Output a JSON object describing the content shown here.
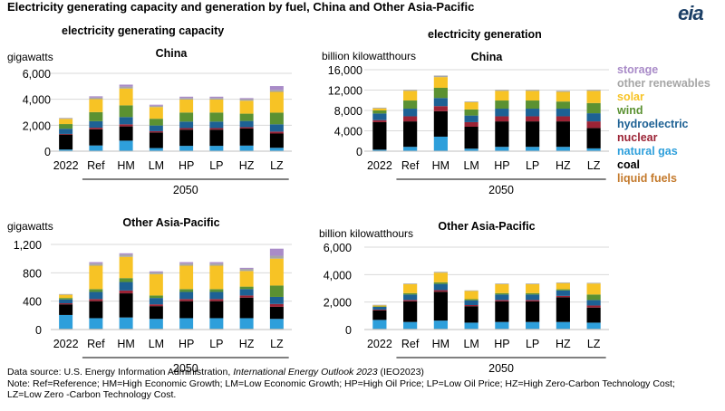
{
  "title": "Electricity generating capacity and generation by  fuel, China and Other Asia-Pacific",
  "logo": "eia",
  "section_titles": {
    "capacity": "electricity generating capacity",
    "generation": "electricity generation"
  },
  "legend": [
    {
      "label": "storage",
      "color": "#a98bc8"
    },
    {
      "label": "other renewables",
      "color": "#a6a6a6"
    },
    {
      "label": "solar",
      "color": "#f7c325"
    },
    {
      "label": "wind",
      "color": "#5b9132"
    },
    {
      "label": "hydroelectric",
      "color": "#1d6194"
    },
    {
      "label": "nuclear",
      "color": "#9b2335"
    },
    {
      "label": "natural gas",
      "color": "#2e9fdb"
    },
    {
      "label": "coal",
      "color": "#000000"
    },
    {
      "label": "liquid fuels",
      "color": "#c47a2c"
    }
  ],
  "footer": {
    "source_prefix": "Data source: U.S. Energy Information Administration, ",
    "source_title": "International Energy Outlook 2023",
    "source_suffix": " (IEO2023)",
    "note": "Note: Ref=Reference; HM=High Economic Growth; LM=Low Economic Growth; HP=High Oil Price; LP=Low Oil Price; HZ=High Zero-Carbon Technology Cost; LZ=Low Zero -Carbon Technology Cost."
  },
  "chart_data": [
    {
      "type": "bar",
      "stacked": true,
      "title": "China",
      "ylabel": "gigawatts",
      "ylim": [
        0,
        6000
      ],
      "yticks": [
        "0",
        "2,000",
        "4,000",
        "6,000"
      ],
      "categories": [
        "2022",
        "Ref",
        "HM",
        "LM",
        "HP",
        "LP",
        "HZ",
        "LZ"
      ],
      "group_label": "2050",
      "series": [
        {
          "name": "liquid fuels",
          "values": [
            10,
            10,
            10,
            10,
            10,
            10,
            10,
            10
          ]
        },
        {
          "name": "natural gas",
          "values": [
            120,
            430,
            800,
            230,
            400,
            400,
            420,
            250
          ]
        },
        {
          "name": "coal",
          "values": [
            1150,
            1250,
            1100,
            1200,
            1250,
            1250,
            1320,
            1100
          ]
        },
        {
          "name": "nuclear",
          "values": [
            50,
            120,
            160,
            100,
            120,
            120,
            100,
            150
          ]
        },
        {
          "name": "hydroelectric",
          "values": [
            400,
            500,
            560,
            440,
            500,
            500,
            480,
            560
          ]
        },
        {
          "name": "wind",
          "values": [
            360,
            700,
            900,
            520,
            700,
            700,
            560,
            900
          ]
        },
        {
          "name": "solar",
          "values": [
            400,
            1000,
            1300,
            900,
            1000,
            1000,
            1000,
            1600
          ]
        },
        {
          "name": "other renewables",
          "values": [
            60,
            120,
            150,
            100,
            120,
            120,
            120,
            150
          ]
        },
        {
          "name": "storage",
          "values": [
            10,
            100,
            150,
            80,
            100,
            100,
            80,
            300
          ]
        }
      ]
    },
    {
      "type": "bar",
      "stacked": true,
      "title": "China",
      "ylabel": "billion kilowatthours",
      "ylim": [
        0,
        16000
      ],
      "yticks": [
        "0",
        "4,000",
        "8,000",
        "12,000",
        "16,000"
      ],
      "categories": [
        "2022",
        "Ref",
        "HM",
        "LM",
        "HP",
        "LP",
        "HZ",
        "LZ"
      ],
      "group_label": "2050",
      "series": [
        {
          "name": "liquid fuels",
          "values": [
            50,
            50,
            50,
            50,
            50,
            50,
            50,
            50
          ]
        },
        {
          "name": "natural gas",
          "values": [
            250,
            800,
            2800,
            450,
            800,
            800,
            800,
            500
          ]
        },
        {
          "name": "coal",
          "values": [
            5400,
            5000,
            5000,
            4300,
            5000,
            5000,
            5000,
            4000
          ]
        },
        {
          "name": "nuclear",
          "values": [
            400,
            1000,
            1000,
            900,
            1000,
            1000,
            1000,
            1300
          ]
        },
        {
          "name": "hydroelectric",
          "values": [
            1300,
            1500,
            1600,
            1300,
            1500,
            1500,
            1500,
            1600
          ]
        },
        {
          "name": "wind",
          "values": [
            600,
            1600,
            2000,
            1200,
            1600,
            1600,
            1400,
            2000
          ]
        },
        {
          "name": "solar",
          "values": [
            400,
            1900,
            2100,
            1400,
            1900,
            1900,
            1900,
            2400
          ]
        },
        {
          "name": "other renewables",
          "values": [
            150,
            200,
            300,
            150,
            200,
            200,
            200,
            200
          ]
        }
      ]
    },
    {
      "type": "bar",
      "stacked": true,
      "title": "Other Asia-Pacific",
      "ylabel": "gigawatts",
      "ylim": [
        0,
        1200
      ],
      "yticks": [
        "0",
        "400",
        "800",
        "1,200"
      ],
      "categories": [
        "2022",
        "Ref",
        "HM",
        "LM",
        "HP",
        "LP",
        "HZ",
        "LZ"
      ],
      "group_label": "2050",
      "series": [
        {
          "name": "liquid fuels",
          "values": [
            10,
            10,
            10,
            10,
            10,
            10,
            10,
            10
          ]
        },
        {
          "name": "natural gas",
          "values": [
            195,
            150,
            160,
            140,
            150,
            150,
            150,
            140
          ]
        },
        {
          "name": "coal",
          "values": [
            150,
            240,
            340,
            180,
            240,
            240,
            290,
            170
          ]
        },
        {
          "name": "nuclear",
          "values": [
            15,
            30,
            40,
            25,
            30,
            30,
            30,
            40
          ]
        },
        {
          "name": "hydroelectric",
          "values": [
            55,
            100,
            120,
            90,
            100,
            100,
            90,
            100
          ]
        },
        {
          "name": "wind",
          "values": [
            20,
            40,
            55,
            35,
            40,
            40,
            35,
            160
          ]
        },
        {
          "name": "solar",
          "values": [
            45,
            330,
            300,
            300,
            330,
            330,
            220,
            380
          ]
        },
        {
          "name": "other renewables",
          "values": [
            10,
            30,
            30,
            25,
            30,
            30,
            30,
            40
          ]
        },
        {
          "name": "storage",
          "values": [
            0,
            20,
            20,
            15,
            20,
            20,
            15,
            100
          ]
        }
      ]
    },
    {
      "type": "bar",
      "stacked": true,
      "title": "Other Asia-Pacific",
      "ylabel": "billion kilowatthours",
      "ylim": [
        0,
        6000
      ],
      "yticks": [
        "0",
        "2,000",
        "4,000",
        "6,000"
      ],
      "categories": [
        "2022",
        "Ref",
        "HM",
        "LM",
        "HP",
        "LP",
        "HZ",
        "LZ"
      ],
      "group_label": "2050",
      "series": [
        {
          "name": "liquid fuels",
          "values": [
            50,
            50,
            50,
            50,
            50,
            50,
            50,
            50
          ]
        },
        {
          "name": "natural gas",
          "values": [
            650,
            500,
            600,
            450,
            500,
            500,
            500,
            450
          ]
        },
        {
          "name": "coal",
          "values": [
            700,
            1500,
            2100,
            1200,
            1500,
            1500,
            1800,
            1100
          ]
        },
        {
          "name": "nuclear",
          "values": [
            50,
            100,
            120,
            80,
            100,
            100,
            100,
            150
          ]
        },
        {
          "name": "hydroelectric",
          "values": [
            200,
            400,
            450,
            350,
            400,
            400,
            400,
            400
          ]
        },
        {
          "name": "wind",
          "values": [
            30,
            100,
            120,
            80,
            100,
            100,
            80,
            400
          ]
        },
        {
          "name": "solar",
          "values": [
            70,
            650,
            700,
            600,
            650,
            650,
            450,
            800
          ]
        },
        {
          "name": "other renewables",
          "values": [
            50,
            50,
            60,
            40,
            50,
            50,
            50,
            50
          ]
        }
      ]
    }
  ]
}
